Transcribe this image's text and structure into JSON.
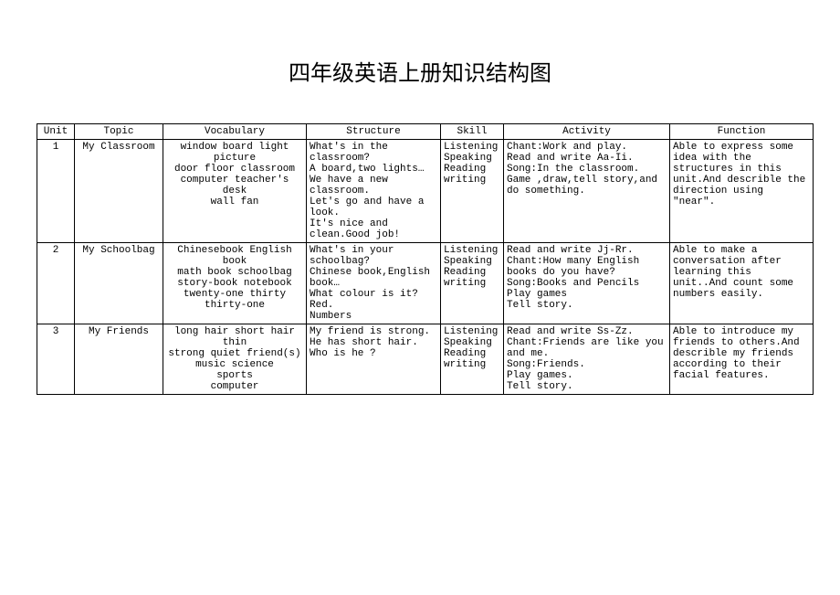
{
  "title": "四年级英语上册知识结构图",
  "headers": [
    "Unit",
    "Topic",
    "Vocabulary",
    "Structure",
    "Skill",
    "Activity",
    "Function"
  ],
  "rows": [
    {
      "unit": "1",
      "topic": "My Classroom",
      "vocabulary": "window board light picture\ndoor floor classroom\n computer teacher's desk\nwall fan",
      "structure": "What's in the classroom?\nA board,two lights…\nWe have a new classroom.\nLet's go and have a look.\nIt's nice and clean.Good job!",
      "skill": "Listening\nSpeaking\nReading\nwriting",
      "activity": "Chant:Work and play.\nRead and write Aa-Ii.\nSong:In the classroom.\nGame ,draw,tell story,and do something.",
      "function": "Able to express some idea with the structures in this unit.And describle the direction using \"near\"."
    },
    {
      "unit": "2",
      "topic": "My Schoolbag",
      "vocabulary": "Chinesebook    English book\nmath book schoolbag\nstory-book notebook\ntwenty-one thirty thirty-one",
      "structure": "What's in your schoolbag?\nChinese book,English book…\nWhat colour is it?\nRed.\nNumbers",
      "skill": "Listening\nSpeaking\nReading\nwriting",
      "activity": "Read and write Jj-Rr.\nChant:How many English books do you have?\nSong:Books and Pencils\nPlay games\nTell story.",
      "function": "Able to make a conversation after learning this unit..And count some numbers easily."
    },
    {
      "unit": "3",
      "topic": "My Friends",
      "vocabulary": "long hair short hair thin\nstrong quiet friend(s)\nmusic    science\nsports\ncomputer",
      "structure": "My friend is strong.\nHe has short hair.\nWho is he ?",
      "skill": "Listening\nSpeaking\nReading\nwriting",
      "activity": "Read and write Ss-Zz.\nChant:Friends are like you and me.\nSong:Friends.\nPlay games.\nTell story.",
      "function": "Able to introduce my friends to others.And describle my friends according to their facial features."
    }
  ]
}
